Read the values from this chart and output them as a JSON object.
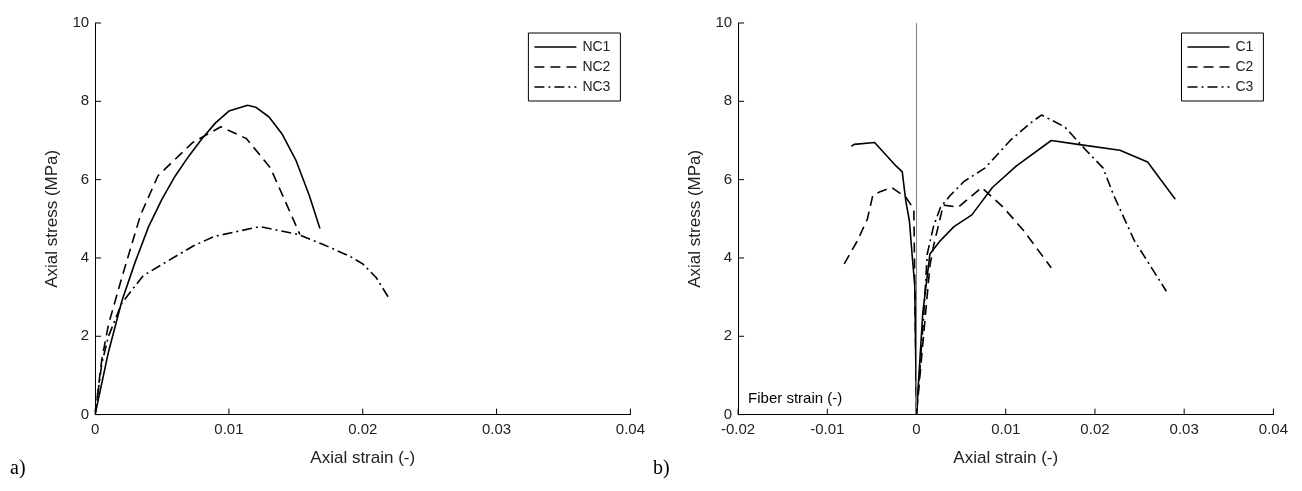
{
  "chart_data": [
    {
      "type": "line",
      "xlabel": "Axial strain (-)",
      "ylabel": "Axial stress (MPa)",
      "xlim": [
        0,
        0.04
      ],
      "xticks": [
        0,
        0.01,
        0.02,
        0.03,
        0.04
      ],
      "ylim": [
        0,
        10
      ],
      "yticks": [
        0,
        2,
        4,
        6,
        8,
        10
      ],
      "grid": false,
      "legend": "top right",
      "marker": "none",
      "annotations": [
        "a)"
      ],
      "series": [
        {
          "name": "NC1",
          "color": "#000000",
          "line_style": "solid",
          "x": [
            0,
            0.0005,
            0.001,
            0.002,
            0.003,
            0.004,
            0.005,
            0.006,
            0.007,
            0.008,
            0.009,
            0.01,
            0.0114,
            0.012,
            0.013,
            0.014,
            0.015,
            0.016,
            0.0168
          ],
          "values": [
            0,
            0.8,
            1.6,
            2.9,
            3.9,
            4.8,
            5.5,
            6.1,
            6.6,
            7.05,
            7.45,
            7.75,
            7.9,
            7.85,
            7.6,
            7.15,
            6.5,
            5.6,
            4.75
          ]
        },
        {
          "name": "NC2",
          "color": "#000000",
          "line_style": "dashed",
          "x": [
            0,
            0.0005,
            0.001,
            0.002,
            0.0034,
            0.0047,
            0.0073,
            0.0094,
            0.0113,
            0.0131,
            0.0144,
            0.0153
          ],
          "values": [
            0,
            1.4,
            2.3,
            3.5,
            5.1,
            6.1,
            6.95,
            7.35,
            7.05,
            6.3,
            5.3,
            4.6
          ]
        },
        {
          "name": "NC3",
          "color": "#000000",
          "line_style": "dashdot",
          "x": [
            0,
            0.0005,
            0.001,
            0.002,
            0.0036,
            0.0073,
            0.0089,
            0.0123,
            0.0152,
            0.017,
            0.019,
            0.02,
            0.021,
            0.022
          ],
          "values": [
            0,
            1.3,
            2,
            2.85,
            3.55,
            4.3,
            4.55,
            4.8,
            4.6,
            4.35,
            4.05,
            3.85,
            3.5,
            2.95
          ]
        }
      ]
    },
    {
      "type": "line",
      "xlabel": "Axial strain (-)",
      "ylabel": "Axial stress (MPa)",
      "xlim": [
        -0.02,
        0.04
      ],
      "xticks": [
        -0.02,
        -0.01,
        0,
        0.01,
        0.02,
        0.03,
        0.04
      ],
      "ylim": [
        0,
        10
      ],
      "yticks": [
        0,
        2,
        4,
        6,
        8,
        10
      ],
      "grid": false,
      "legend": "top right",
      "marker": "none",
      "annotations": [
        "b)",
        "Fiber strain (-)"
      ],
      "ref_lines": [
        {
          "axis": "x",
          "value": 0,
          "color": "#808080"
        }
      ],
      "series": [
        {
          "name": "C1",
          "color": "#000000",
          "line_style": "solid",
          "x": [
            -0.0073,
            -0.007,
            -0.0047,
            -0.0023,
            -0.0016,
            -0.0012,
            -0.0008,
            -0.0005,
            -0.0002,
            0,
            0.0007,
            0.0015,
            0.0027,
            0.0042,
            0.0062,
            0.0085,
            0.0112,
            0.0151,
            0.0181,
            0.0228,
            0.0259,
            0.029
          ],
          "values": [
            6.85,
            6.9,
            6.95,
            6.35,
            6.2,
            5.45,
            4.95,
            4.1,
            3.3,
            0,
            2.6,
            4.1,
            4.45,
            4.8,
            5.1,
            5.8,
            6.35,
            7,
            6.9,
            6.75,
            6.45,
            5.5
          ]
        },
        {
          "name": "C2",
          "color": "#000000",
          "line_style": "dashed",
          "x": [
            -0.0081,
            -0.0066,
            -0.0055,
            -0.0049,
            -0.004,
            -0.0028,
            -0.0012,
            -0.0006,
            -0.0003,
            0,
            0.0007,
            0.0015,
            0.0019,
            0.003,
            0.0047,
            0.0073,
            0.0097,
            0.012,
            0.0151
          ],
          "values": [
            3.85,
            4.45,
            5,
            5.6,
            5.7,
            5.8,
            5.55,
            5.35,
            5.2,
            0,
            1.8,
            3.8,
            4.3,
            5.35,
            5.3,
            5.8,
            5.3,
            4.7,
            3.75
          ]
        },
        {
          "name": "C3",
          "color": "#000000",
          "line_style": "dashdot",
          "x": [
            0,
            0.0008,
            0.0012,
            0.0019,
            0.0027,
            0.0038,
            0.0053,
            0.0077,
            0.0105,
            0.0128,
            0.014,
            0.0166,
            0.019,
            0.0209,
            0.0221,
            0.0244,
            0.028
          ],
          "values": [
            0,
            2.5,
            4.1,
            4.8,
            5.3,
            5.6,
            5.95,
            6.3,
            7,
            7.45,
            7.65,
            7.35,
            6.75,
            6.3,
            5.6,
            4.45,
            3.15
          ]
        }
      ]
    }
  ]
}
